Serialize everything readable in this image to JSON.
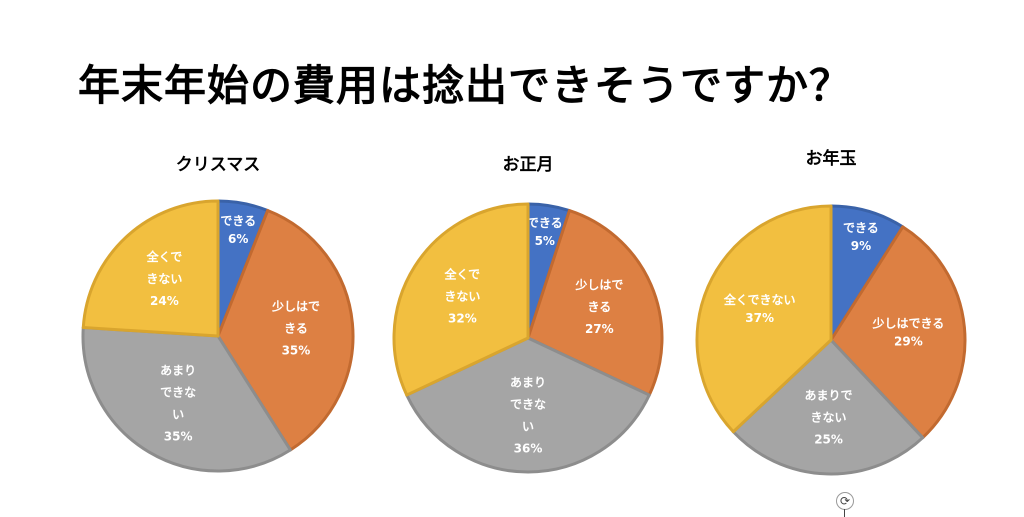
{
  "title": "年末年始の費用は捻出できそうですか？",
  "colors": {
    "できる": "#4472c4",
    "少しはできる": "#dd8043",
    "あまりできない": "#a5a5a5",
    "全くできない": "#f2bf40"
  },
  "chart_data": [
    {
      "type": "pie",
      "title": "クリスマス",
      "categories": [
        "できる",
        "少しはできる",
        "あまりできない",
        "全くできない"
      ],
      "values": [
        6,
        35,
        35,
        24
      ],
      "label_lines": [
        [
          "できる"
        ],
        [
          "少しはで",
          "きる"
        ],
        [
          "あまり",
          "できな",
          "い"
        ],
        [
          "全くで",
          "きない"
        ]
      ]
    },
    {
      "type": "pie",
      "title": "お正月",
      "categories": [
        "できる",
        "少しはできる",
        "あまりできない",
        "全くできない"
      ],
      "values": [
        5,
        27,
        36,
        32
      ],
      "label_lines": [
        [
          "できる"
        ],
        [
          "少しはで",
          "きる"
        ],
        [
          "あまり",
          "できな",
          "い"
        ],
        [
          "全くで",
          "きない"
        ]
      ]
    },
    {
      "type": "pie",
      "title": "お年玉",
      "categories": [
        "できる",
        "少しはできる",
        "あまりできない",
        "全くできない"
      ],
      "values": [
        9,
        29,
        25,
        37
      ],
      "label_lines": [
        [
          "できる"
        ],
        [
          "少しはできる"
        ],
        [
          "あまりで",
          "きない"
        ],
        [
          "全くできない"
        ]
      ]
    }
  ],
  "rotate_handle_icon": "rotate-icon"
}
